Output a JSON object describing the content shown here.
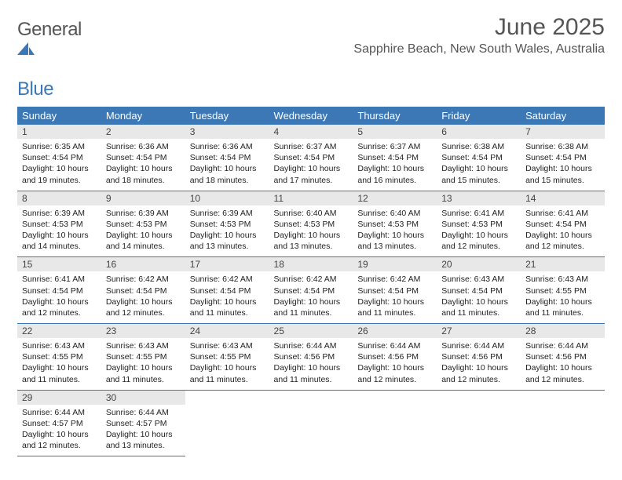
{
  "brand": {
    "general": "General",
    "blue": "Blue"
  },
  "title": "June 2025",
  "location": "Sapphire Beach, New South Wales, Australia",
  "colors": {
    "accent": "#3b78b5",
    "header_text": "#ffffff",
    "daynum_bg": "#e8e8e8",
    "body_text": "#333333",
    "background": "#ffffff"
  },
  "weekdays": [
    "Sunday",
    "Monday",
    "Tuesday",
    "Wednesday",
    "Thursday",
    "Friday",
    "Saturday"
  ],
  "weeks": [
    [
      {
        "n": "1",
        "sunrise": "Sunrise: 6:35 AM",
        "sunset": "Sunset: 4:54 PM",
        "day": "Daylight: 10 hours and 19 minutes."
      },
      {
        "n": "2",
        "sunrise": "Sunrise: 6:36 AM",
        "sunset": "Sunset: 4:54 PM",
        "day": "Daylight: 10 hours and 18 minutes."
      },
      {
        "n": "3",
        "sunrise": "Sunrise: 6:36 AM",
        "sunset": "Sunset: 4:54 PM",
        "day": "Daylight: 10 hours and 18 minutes."
      },
      {
        "n": "4",
        "sunrise": "Sunrise: 6:37 AM",
        "sunset": "Sunset: 4:54 PM",
        "day": "Daylight: 10 hours and 17 minutes."
      },
      {
        "n": "5",
        "sunrise": "Sunrise: 6:37 AM",
        "sunset": "Sunset: 4:54 PM",
        "day": "Daylight: 10 hours and 16 minutes."
      },
      {
        "n": "6",
        "sunrise": "Sunrise: 6:38 AM",
        "sunset": "Sunset: 4:54 PM",
        "day": "Daylight: 10 hours and 15 minutes."
      },
      {
        "n": "7",
        "sunrise": "Sunrise: 6:38 AM",
        "sunset": "Sunset: 4:54 PM",
        "day": "Daylight: 10 hours and 15 minutes."
      }
    ],
    [
      {
        "n": "8",
        "sunrise": "Sunrise: 6:39 AM",
        "sunset": "Sunset: 4:53 PM",
        "day": "Daylight: 10 hours and 14 minutes."
      },
      {
        "n": "9",
        "sunrise": "Sunrise: 6:39 AM",
        "sunset": "Sunset: 4:53 PM",
        "day": "Daylight: 10 hours and 14 minutes."
      },
      {
        "n": "10",
        "sunrise": "Sunrise: 6:39 AM",
        "sunset": "Sunset: 4:53 PM",
        "day": "Daylight: 10 hours and 13 minutes."
      },
      {
        "n": "11",
        "sunrise": "Sunrise: 6:40 AM",
        "sunset": "Sunset: 4:53 PM",
        "day": "Daylight: 10 hours and 13 minutes."
      },
      {
        "n": "12",
        "sunrise": "Sunrise: 6:40 AM",
        "sunset": "Sunset: 4:53 PM",
        "day": "Daylight: 10 hours and 13 minutes."
      },
      {
        "n": "13",
        "sunrise": "Sunrise: 6:41 AM",
        "sunset": "Sunset: 4:53 PM",
        "day": "Daylight: 10 hours and 12 minutes."
      },
      {
        "n": "14",
        "sunrise": "Sunrise: 6:41 AM",
        "sunset": "Sunset: 4:54 PM",
        "day": "Daylight: 10 hours and 12 minutes."
      }
    ],
    [
      {
        "n": "15",
        "sunrise": "Sunrise: 6:41 AM",
        "sunset": "Sunset: 4:54 PM",
        "day": "Daylight: 10 hours and 12 minutes."
      },
      {
        "n": "16",
        "sunrise": "Sunrise: 6:42 AM",
        "sunset": "Sunset: 4:54 PM",
        "day": "Daylight: 10 hours and 12 minutes."
      },
      {
        "n": "17",
        "sunrise": "Sunrise: 6:42 AM",
        "sunset": "Sunset: 4:54 PM",
        "day": "Daylight: 10 hours and 11 minutes."
      },
      {
        "n": "18",
        "sunrise": "Sunrise: 6:42 AM",
        "sunset": "Sunset: 4:54 PM",
        "day": "Daylight: 10 hours and 11 minutes."
      },
      {
        "n": "19",
        "sunrise": "Sunrise: 6:42 AM",
        "sunset": "Sunset: 4:54 PM",
        "day": "Daylight: 10 hours and 11 minutes."
      },
      {
        "n": "20",
        "sunrise": "Sunrise: 6:43 AM",
        "sunset": "Sunset: 4:54 PM",
        "day": "Daylight: 10 hours and 11 minutes."
      },
      {
        "n": "21",
        "sunrise": "Sunrise: 6:43 AM",
        "sunset": "Sunset: 4:55 PM",
        "day": "Daylight: 10 hours and 11 minutes."
      }
    ],
    [
      {
        "n": "22",
        "sunrise": "Sunrise: 6:43 AM",
        "sunset": "Sunset: 4:55 PM",
        "day": "Daylight: 10 hours and 11 minutes."
      },
      {
        "n": "23",
        "sunrise": "Sunrise: 6:43 AM",
        "sunset": "Sunset: 4:55 PM",
        "day": "Daylight: 10 hours and 11 minutes."
      },
      {
        "n": "24",
        "sunrise": "Sunrise: 6:43 AM",
        "sunset": "Sunset: 4:55 PM",
        "day": "Daylight: 10 hours and 11 minutes."
      },
      {
        "n": "25",
        "sunrise": "Sunrise: 6:44 AM",
        "sunset": "Sunset: 4:56 PM",
        "day": "Daylight: 10 hours and 11 minutes."
      },
      {
        "n": "26",
        "sunrise": "Sunrise: 6:44 AM",
        "sunset": "Sunset: 4:56 PM",
        "day": "Daylight: 10 hours and 12 minutes."
      },
      {
        "n": "27",
        "sunrise": "Sunrise: 6:44 AM",
        "sunset": "Sunset: 4:56 PM",
        "day": "Daylight: 10 hours and 12 minutes."
      },
      {
        "n": "28",
        "sunrise": "Sunrise: 6:44 AM",
        "sunset": "Sunset: 4:56 PM",
        "day": "Daylight: 10 hours and 12 minutes."
      }
    ],
    [
      {
        "n": "29",
        "sunrise": "Sunrise: 6:44 AM",
        "sunset": "Sunset: 4:57 PM",
        "day": "Daylight: 10 hours and 12 minutes."
      },
      {
        "n": "30",
        "sunrise": "Sunrise: 6:44 AM",
        "sunset": "Sunset: 4:57 PM",
        "day": "Daylight: 10 hours and 13 minutes."
      },
      null,
      null,
      null,
      null,
      null
    ]
  ]
}
